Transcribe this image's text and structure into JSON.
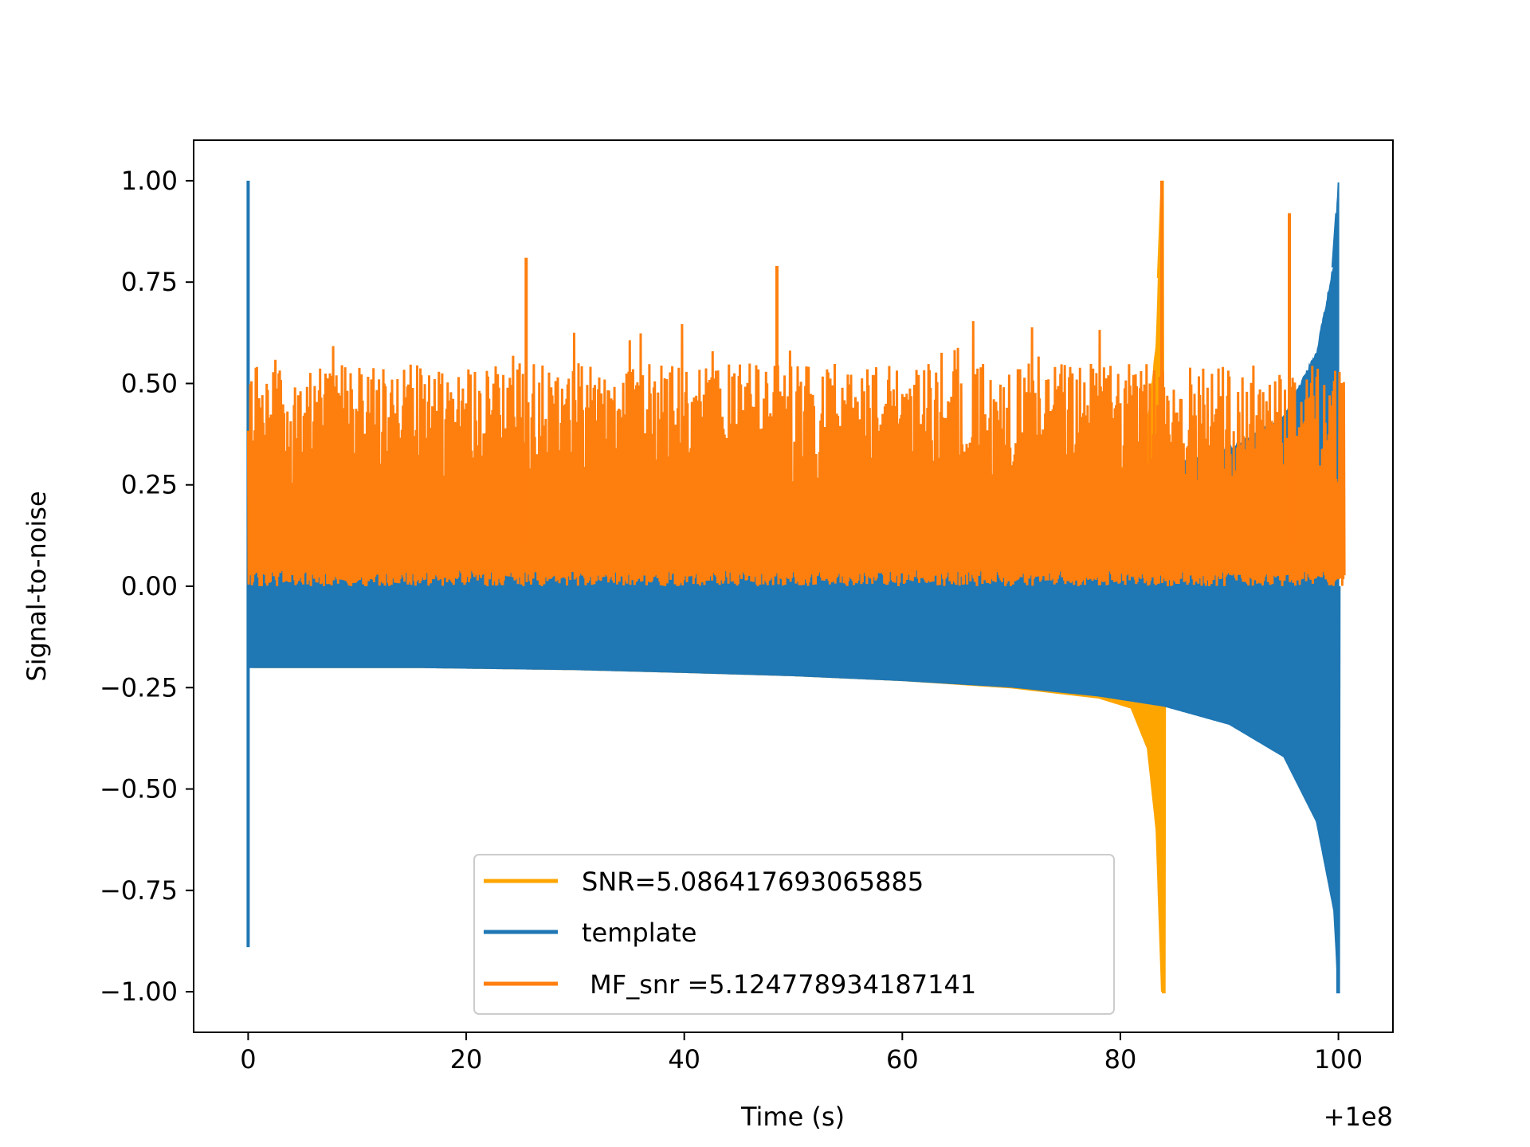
{
  "chart_data": {
    "type": "line",
    "title": "",
    "xlabel": "Time (s)",
    "ylabel": "Signal-to-noise",
    "x_offset_label": "+1e8",
    "xlim": [
      -5,
      105
    ],
    "ylim": [
      -1.1,
      1.1
    ],
    "x_ticks": [
      {
        "value": 0,
        "label": "0"
      },
      {
        "value": 20,
        "label": "20"
      },
      {
        "value": 40,
        "label": "40"
      },
      {
        "value": 60,
        "label": "60"
      },
      {
        "value": 80,
        "label": "80"
      },
      {
        "value": 100,
        "label": "100"
      }
    ],
    "y_ticks": [
      {
        "value": 1.0,
        "label": "1.00"
      },
      {
        "value": 0.75,
        "label": "0.75"
      },
      {
        "value": 0.5,
        "label": "0.50"
      },
      {
        "value": 0.25,
        "label": "0.25"
      },
      {
        "value": 0.0,
        "label": "0.00"
      },
      {
        "value": -0.25,
        "label": "−0.25"
      },
      {
        "value": -0.5,
        "label": "−0.50"
      },
      {
        "value": -0.75,
        "label": "−0.75"
      },
      {
        "value": -1.0,
        "label": "−1.00"
      }
    ],
    "grid": false,
    "legend_position": "lower-center",
    "series": [
      {
        "name": "SNR=5.086417693065885",
        "color": "#ffa500",
        "kind": "chirp-template",
        "t_start": 0.5,
        "t_plateau_end": 16,
        "t_merger": 84,
        "envelope": [
          [
            0.5,
            0.2
          ],
          [
            16,
            0.2
          ],
          [
            30,
            0.205
          ],
          [
            40,
            0.212
          ],
          [
            50,
            0.22
          ],
          [
            60,
            0.232
          ],
          [
            70,
            0.25
          ],
          [
            78,
            0.275
          ],
          [
            81,
            0.3
          ],
          [
            82.5,
            0.4
          ],
          [
            83.3,
            0.6
          ],
          [
            83.8,
            1.0
          ]
        ],
        "peak": 1.0,
        "trough": -1.0
      },
      {
        "name": "template",
        "color": "#1f77b4",
        "kind": "chirp-template",
        "t_start": 0,
        "t_merger": 100,
        "envelope": [
          [
            0.3,
            0.2
          ],
          [
            16,
            0.2
          ],
          [
            30,
            0.205
          ],
          [
            40,
            0.212
          ],
          [
            50,
            0.22
          ],
          [
            60,
            0.232
          ],
          [
            70,
            0.248
          ],
          [
            78,
            0.27
          ],
          [
            84,
            0.295
          ],
          [
            90,
            0.34
          ],
          [
            95,
            0.42
          ],
          [
            98,
            0.58
          ],
          [
            99.6,
            0.8
          ],
          [
            100,
            1.0
          ]
        ],
        "spike_start": {
          "t": 0,
          "max": 1.0,
          "min": -0.89
        },
        "peak": 0.92,
        "trough": -1.0
      },
      {
        "name": " MF_snr =5.124778934187141",
        "color": "#ff7f0e",
        "kind": "noise-snr",
        "t_start": 0,
        "t_end": 100.5,
        "baseline_min": 0.0,
        "typical_max": 0.55,
        "notable_peaks": [
          {
            "t": 25.5,
            "value": 0.81
          },
          {
            "t": 48.5,
            "value": 0.79
          },
          {
            "t": 83.8,
            "value": 1.0
          },
          {
            "t": 95.5,
            "value": 0.92
          }
        ]
      }
    ]
  }
}
